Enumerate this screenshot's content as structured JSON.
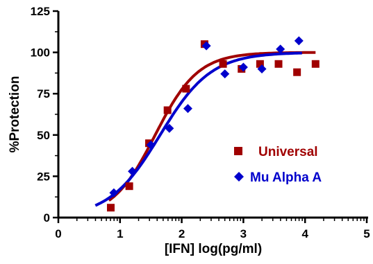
{
  "chart_data": {
    "type": "scatter",
    "title": "",
    "xlabel": "[IFN] log(pg/ml)",
    "ylabel": "%Protection",
    "xlim": [
      0,
      5
    ],
    "ylim": [
      0,
      125
    ],
    "xticks": [
      "0",
      "1",
      "2",
      "3",
      "4",
      "5"
    ],
    "yticks": [
      "0",
      "25",
      "50",
      "75",
      "100",
      "125"
    ],
    "grid": false,
    "legend_position": "center-right",
    "series": [
      {
        "name": "Universal",
        "marker": "square",
        "color": "#a00000",
        "points": [
          [
            0.85,
            6
          ],
          [
            1.15,
            19
          ],
          [
            1.47,
            45
          ],
          [
            1.77,
            65
          ],
          [
            2.07,
            78
          ],
          [
            2.37,
            105
          ],
          [
            2.67,
            93
          ],
          [
            2.97,
            90
          ],
          [
            3.27,
            93
          ],
          [
            3.57,
            93
          ],
          [
            3.87,
            88
          ],
          [
            4.17,
            93
          ]
        ],
        "fit": {
          "bottom": 0,
          "top": 100,
          "ec50_log": 1.57,
          "hill": 1.25,
          "x_range": [
            0.82,
            4.17
          ]
        }
      },
      {
        "name": "Mu Alpha A",
        "marker": "diamond",
        "color": "#0000cc",
        "points": [
          [
            0.9,
            15
          ],
          [
            1.2,
            28
          ],
          [
            1.5,
            44
          ],
          [
            1.8,
            54
          ],
          [
            2.1,
            66
          ],
          [
            2.4,
            104
          ],
          [
            2.7,
            87
          ],
          [
            3.0,
            91
          ],
          [
            3.3,
            90
          ],
          [
            3.6,
            102
          ],
          [
            3.9,
            107
          ]
        ],
        "fit": {
          "bottom": 0,
          "top": 100,
          "ec50_log": 1.65,
          "hill": 1.05,
          "x_range": [
            0.6,
            3.95
          ]
        }
      }
    ]
  }
}
